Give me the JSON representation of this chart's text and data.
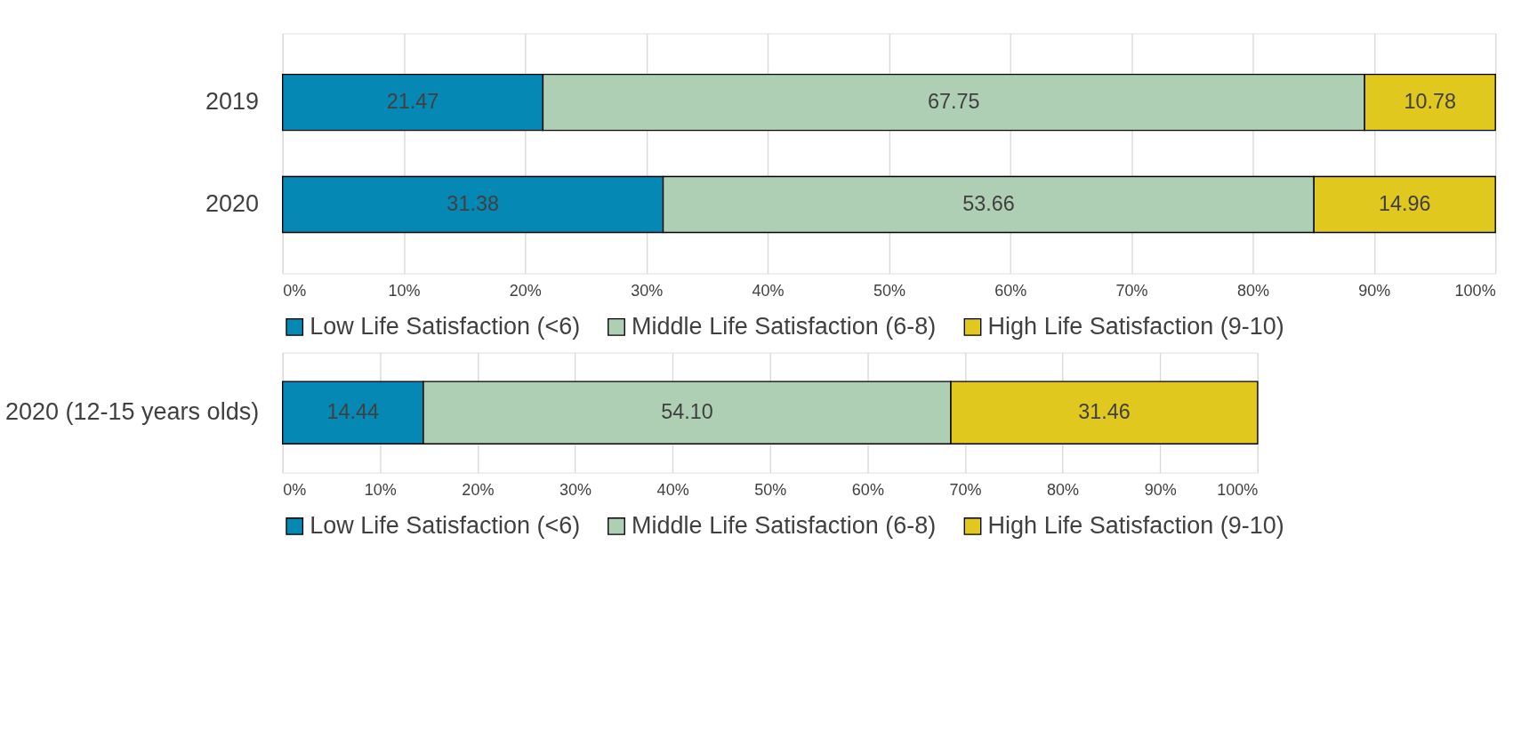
{
  "chart_data": [
    {
      "type": "bar",
      "orientation": "horizontal",
      "stacked": true,
      "categories": [
        "2019",
        "2020"
      ],
      "series": [
        {
          "name": "Low Life Satisfaction (<6)",
          "color": "#0589b4",
          "values": [
            21.47,
            31.38
          ]
        },
        {
          "name": "Middle Life Satisfaction (6-8)",
          "color": "#aecfb3",
          "values": [
            67.75,
            53.66
          ]
        },
        {
          "name": "High Life Satisfaction (9-10)",
          "color": "#e0c81e",
          "values": [
            10.78,
            14.96
          ]
        }
      ],
      "data_labels": true,
      "xlim": [
        0,
        100
      ],
      "xticks": [
        {
          "value": 0,
          "label": "0%"
        },
        {
          "value": 10,
          "label": "10%"
        },
        {
          "value": 20,
          "label": "20%"
        },
        {
          "value": 30,
          "label": "30%"
        },
        {
          "value": 40,
          "label": "40%"
        },
        {
          "value": 50,
          "label": "50%"
        },
        {
          "value": 60,
          "label": "60%"
        },
        {
          "value": 70,
          "label": "70%"
        },
        {
          "value": 80,
          "label": "80%"
        },
        {
          "value": 90,
          "label": "90%"
        },
        {
          "value": 100,
          "label": "100%"
        }
      ],
      "grid": "x",
      "legend": "bottom"
    },
    {
      "type": "bar",
      "orientation": "horizontal",
      "stacked": true,
      "categories": [
        "2020 (12-15 years olds)"
      ],
      "series": [
        {
          "name": "Low Life Satisfaction (<6)",
          "color": "#0589b4",
          "values": [
            14.44
          ],
          "value_labels": [
            "14.44"
          ]
        },
        {
          "name": "Middle Life Satisfaction (6-8)",
          "color": "#aecfb3",
          "values": [
            54.1
          ],
          "value_labels": [
            "54.10"
          ]
        },
        {
          "name": "High Life Satisfaction (9-10)",
          "color": "#e0c81e",
          "values": [
            31.46
          ],
          "value_labels": [
            "31.46"
          ]
        }
      ],
      "xlim": [
        0,
        100
      ],
      "xticks": [
        {
          "value": 0,
          "label": "0%"
        },
        {
          "value": 10,
          "label": "10%"
        },
        {
          "value": 20,
          "label": "20%"
        },
        {
          "value": 30,
          "label": "30%"
        },
        {
          "value": 40,
          "label": "40%"
        },
        {
          "value": 50,
          "label": "50%"
        },
        {
          "value": 60,
          "label": "60%"
        },
        {
          "value": 70,
          "label": "70%"
        },
        {
          "value": 80,
          "label": "80%"
        },
        {
          "value": 90,
          "label": "90%"
        },
        {
          "value": 100,
          "label": "100%"
        }
      ],
      "grid": "x",
      "legend": "bottom"
    }
  ]
}
